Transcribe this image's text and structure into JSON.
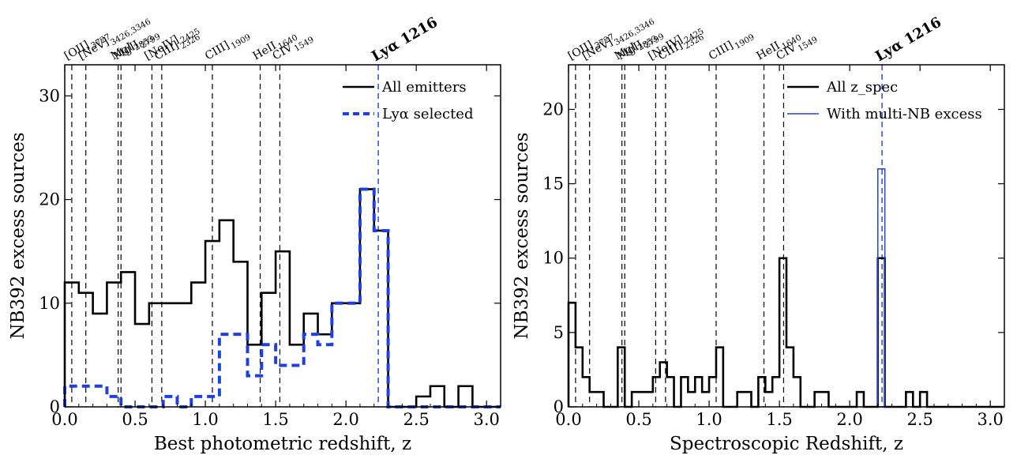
{
  "chart_data": [
    {
      "type": "histogram",
      "xlabel": "Best photometric redshift, z",
      "ylabel": "NB392 excess sources",
      "xlim": [
        0.0,
        3.1
      ],
      "ylim": [
        0,
        33
      ],
      "xticks": [
        "0.0",
        "0.5",
        "1.0",
        "1.5",
        "2.0",
        "2.5",
        "3.0"
      ],
      "yticks": [
        "0",
        "10",
        "20",
        "30"
      ],
      "grid": false,
      "legend_position": "top-right",
      "bin_edges": [
        0.0,
        0.1,
        0.2,
        0.3,
        0.4,
        0.5,
        0.6,
        0.7,
        0.8,
        0.9,
        1.0,
        1.1,
        1.2,
        1.3,
        1.4,
        1.5,
        1.6,
        1.7,
        1.8,
        1.9,
        2.0,
        2.1,
        2.2,
        2.3,
        2.4,
        2.5,
        2.6,
        2.7,
        2.8,
        2.9,
        3.0,
        3.1
      ],
      "series": [
        {
          "name": "All emitters",
          "style": "solid",
          "color": "#000000",
          "values": [
            12,
            11,
            9,
            12,
            13,
            8,
            10,
            10,
            10,
            12,
            16,
            18,
            14,
            6,
            11,
            15,
            6,
            9,
            7,
            10,
            10,
            21,
            17,
            0,
            0,
            1,
            2,
            0,
            2,
            0,
            0
          ]
        },
        {
          "name": "Lyα selected",
          "style": "dashed",
          "color": "#1f3fe0",
          "values": [
            2,
            2,
            2,
            1,
            0,
            0,
            0,
            1,
            0,
            1,
            1,
            7,
            7,
            3,
            6,
            4,
            4,
            7,
            6,
            10,
            10,
            21,
            17,
            0,
            0,
            0,
            0,
            0,
            0,
            0,
            0
          ]
        }
      ],
      "emission_lines": [
        {
          "text": "[OII]",
          "sub": "3727",
          "z": 0.05
        },
        {
          "text": "[NeV]",
          "sub": "3426,3346",
          "z": 0.15
        },
        {
          "text": "MgI",
          "sub": "2853",
          "z": 0.38
        },
        {
          "text": "MgII",
          "sub": "2799",
          "z": 0.4
        },
        {
          "text": "[NeIV]",
          "sub": "2425",
          "z": 0.62
        },
        {
          "text": "CIII]",
          "sub": "2326",
          "z": 0.69
        },
        {
          "text": "CIII]",
          "sub": "1909",
          "z": 1.05
        },
        {
          "text": "HeII",
          "sub": "1640",
          "z": 1.39
        },
        {
          "text": "CIV",
          "sub": "1549",
          "z": 1.53
        }
      ],
      "lya_line": {
        "text": "Lyα 1216",
        "z": 2.23,
        "color": "#1f3fe0"
      }
    },
    {
      "type": "histogram",
      "xlabel": "Spectroscopic Redshift, z",
      "ylabel": "NB392 excess sources",
      "xlim": [
        0.0,
        3.1
      ],
      "ylim": [
        0,
        23
      ],
      "xticks": [
        "0.0",
        "0.5",
        "1.0",
        "1.5",
        "2.0",
        "2.5",
        "3.0"
      ],
      "yticks": [
        "0",
        "5",
        "10",
        "15",
        "20"
      ],
      "grid": false,
      "legend_position": "top-right",
      "bin_edges": [
        0.0,
        0.05,
        0.1,
        0.15,
        0.2,
        0.25,
        0.3,
        0.35,
        0.4,
        0.45,
        0.5,
        0.55,
        0.6,
        0.65,
        0.7,
        0.75,
        0.8,
        0.85,
        0.9,
        0.95,
        1.0,
        1.05,
        1.1,
        1.15,
        1.2,
        1.25,
        1.3,
        1.35,
        1.4,
        1.45,
        1.5,
        1.55,
        1.6,
        1.65,
        1.7,
        1.75,
        1.8,
        1.85,
        1.9,
        1.95,
        2.0,
        2.05,
        2.1,
        2.15,
        2.2,
        2.25,
        2.3,
        2.35,
        2.4,
        2.45,
        2.5,
        2.55,
        2.6,
        2.65,
        2.7,
        2.75,
        2.8,
        2.85,
        2.9,
        2.95,
        3.0,
        3.05,
        3.1
      ],
      "series": [
        {
          "name": "All z_spec",
          "style": "solid",
          "color": "#000000",
          "values": [
            7,
            4,
            2,
            1,
            1,
            0,
            0,
            4,
            0,
            1,
            1,
            1,
            2,
            3,
            2,
            0,
            2,
            1,
            2,
            1,
            2,
            4,
            0,
            0,
            1,
            1,
            0,
            2,
            1,
            2,
            10,
            4,
            2,
            0,
            0,
            1,
            1,
            0,
            0,
            0,
            0,
            1,
            0,
            0,
            10,
            0,
            0,
            0,
            1,
            0,
            1,
            0,
            0,
            0,
            0,
            0,
            0,
            0,
            0,
            0,
            0,
            0
          ]
        },
        {
          "name": "With multi-NB excess",
          "style": "solid-thin",
          "color": "#1f3fe0",
          "bars": [
            {
              "x0": 2.2,
              "x1": 2.25,
              "value": 16
            }
          ]
        }
      ],
      "emission_lines": [
        {
          "text": "[OII]",
          "sub": "3727",
          "z": 0.05
        },
        {
          "text": "[NeV]",
          "sub": "3426,3346",
          "z": 0.15
        },
        {
          "text": "MgI",
          "sub": "2853",
          "z": 0.38
        },
        {
          "text": "MgII",
          "sub": "2799",
          "z": 0.4
        },
        {
          "text": "[NeIV]",
          "sub": "2425",
          "z": 0.62
        },
        {
          "text": "CIII]",
          "sub": "2326",
          "z": 0.69
        },
        {
          "text": "CIII]",
          "sub": "1909",
          "z": 1.05
        },
        {
          "text": "HeII",
          "sub": "1640",
          "z": 1.39
        },
        {
          "text": "CIV",
          "sub": "1549",
          "z": 1.53
        }
      ],
      "lya_line": {
        "text": "Lyα 1216",
        "z": 2.23,
        "color": "#1f3fe0"
      }
    }
  ]
}
